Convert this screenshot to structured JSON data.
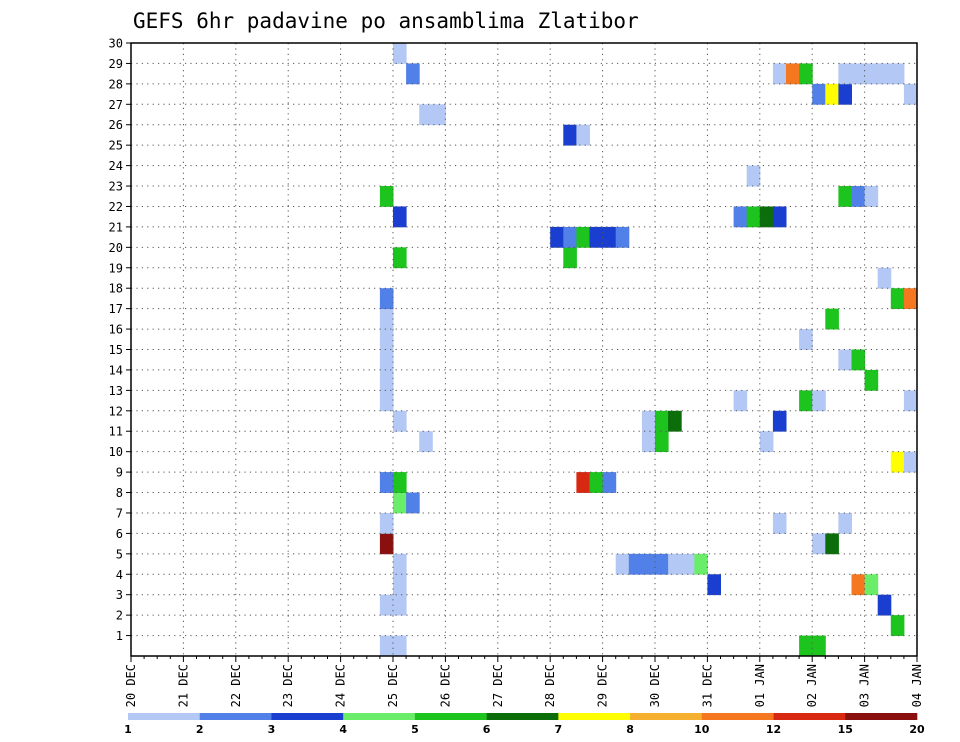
{
  "chart_data": {
    "type": "heatmap",
    "title": "GEFS 6hr padavine po ansamblima Zlatibor",
    "x_tick_labels": [
      "20 DEC",
      "21 DEC",
      "22 DEC",
      "23 DEC",
      "24 DEC",
      "25 DEC",
      "26 DEC",
      "27 DEC",
      "28 DEC",
      "29 DEC",
      "30 DEC",
      "31 DEC",
      "01 JAN",
      "02 JAN",
      "03 JAN",
      "04 JAN"
    ],
    "y_tick_labels": [
      "1",
      "2",
      "3",
      "4",
      "5",
      "6",
      "7",
      "8",
      "9",
      "10",
      "11",
      "12",
      "13",
      "14",
      "15",
      "16",
      "17",
      "18",
      "19",
      "20",
      "21",
      "22",
      "23",
      "24",
      "25",
      "26",
      "27",
      "28",
      "29",
      "30"
    ],
    "xlim": [
      0,
      15
    ],
    "ylim": [
      0,
      30
    ],
    "grid": true,
    "legend": {
      "placement": "bottom",
      "labels": [
        "1",
        "2",
        "3",
        "4",
        "5",
        "6",
        "7",
        "8",
        "10",
        "12",
        "15",
        "20"
      ],
      "colors": [
        "#b4c8f5",
        "#5080e8",
        "#1a3ed0",
        "#6aee6a",
        "#1dc41d",
        "#0b6e0b",
        "#ffff00",
        "#f5b030",
        "#f57820",
        "#d82812",
        "#8a1010"
      ]
    },
    "cells": [
      {
        "x": 4.75,
        "y": 0,
        "v": 1
      },
      {
        "x": 5.0,
        "y": 0,
        "v": 1
      },
      {
        "x": 12.75,
        "y": 0,
        "v": 5
      },
      {
        "x": 13.0,
        "y": 0,
        "v": 5
      },
      {
        "x": 14.5,
        "y": 1,
        "v": 5
      },
      {
        "x": 4.75,
        "y": 2,
        "v": 1
      },
      {
        "x": 5.0,
        "y": 2,
        "v": 1
      },
      {
        "x": 14.25,
        "y": 2,
        "v": 3
      },
      {
        "x": 5.0,
        "y": 3,
        "v": 1
      },
      {
        "x": 11.0,
        "y": 3,
        "v": 3
      },
      {
        "x": 13.75,
        "y": 3,
        "v": 10
      },
      {
        "x": 14.0,
        "y": 3,
        "v": 4
      },
      {
        "x": 5.0,
        "y": 4,
        "v": 1
      },
      {
        "x": 9.25,
        "y": 4,
        "v": 1
      },
      {
        "x": 9.5,
        "y": 4,
        "v": 2
      },
      {
        "x": 9.75,
        "y": 4,
        "v": 2
      },
      {
        "x": 10.0,
        "y": 4,
        "v": 2
      },
      {
        "x": 10.25,
        "y": 4,
        "v": 1
      },
      {
        "x": 10.5,
        "y": 4,
        "v": 1
      },
      {
        "x": 10.75,
        "y": 4,
        "v": 4
      },
      {
        "x": 4.75,
        "y": 5,
        "v": 15
      },
      {
        "x": 13.0,
        "y": 5,
        "v": 1
      },
      {
        "x": 13.25,
        "y": 5,
        "v": 6
      },
      {
        "x": 4.75,
        "y": 6,
        "v": 1
      },
      {
        "x": 12.25,
        "y": 6,
        "v": 1
      },
      {
        "x": 13.5,
        "y": 6,
        "v": 1
      },
      {
        "x": 5.0,
        "y": 7,
        "v": 4
      },
      {
        "x": 5.25,
        "y": 7,
        "v": 2
      },
      {
        "x": 4.75,
        "y": 8,
        "v": 2
      },
      {
        "x": 5.0,
        "y": 8,
        "v": 5
      },
      {
        "x": 8.5,
        "y": 8,
        "v": 12
      },
      {
        "x": 8.75,
        "y": 8,
        "v": 5
      },
      {
        "x": 9.0,
        "y": 8,
        "v": 2
      },
      {
        "x": 14.5,
        "y": 9,
        "v": 7
      },
      {
        "x": 14.75,
        "y": 9,
        "v": 1
      },
      {
        "x": 5.5,
        "y": 10,
        "v": 1
      },
      {
        "x": 9.75,
        "y": 10,
        "v": 1
      },
      {
        "x": 10.0,
        "y": 10,
        "v": 5
      },
      {
        "x": 12.0,
        "y": 10,
        "v": 1
      },
      {
        "x": 5.0,
        "y": 11,
        "v": 1
      },
      {
        "x": 9.75,
        "y": 11,
        "v": 1
      },
      {
        "x": 10.0,
        "y": 11,
        "v": 5
      },
      {
        "x": 10.25,
        "y": 11,
        "v": 6
      },
      {
        "x": 12.25,
        "y": 11,
        "v": 3
      },
      {
        "x": 4.75,
        "y": 12,
        "v": 1
      },
      {
        "x": 11.5,
        "y": 12,
        "v": 1
      },
      {
        "x": 12.75,
        "y": 12,
        "v": 5
      },
      {
        "x": 13.0,
        "y": 12,
        "v": 1
      },
      {
        "x": 14.75,
        "y": 12,
        "v": 1
      },
      {
        "x": 4.75,
        "y": 13,
        "v": 1
      },
      {
        "x": 14.0,
        "y": 13,
        "v": 5
      },
      {
        "x": 4.75,
        "y": 14,
        "v": 1
      },
      {
        "x": 13.5,
        "y": 14,
        "v": 1
      },
      {
        "x": 13.75,
        "y": 14,
        "v": 5
      },
      {
        "x": 4.75,
        "y": 15,
        "v": 1
      },
      {
        "x": 12.75,
        "y": 15,
        "v": 1
      },
      {
        "x": 13.25,
        "y": 16,
        "v": 5
      },
      {
        "x": 4.75,
        "y": 16,
        "v": 1
      },
      {
        "x": 4.75,
        "y": 17,
        "v": 2
      },
      {
        "x": 14.5,
        "y": 17,
        "v": 5
      },
      {
        "x": 14.75,
        "y": 17,
        "v": 10
      },
      {
        "x": 14.25,
        "y": 18,
        "v": 1
      },
      {
        "x": 5.0,
        "y": 19,
        "v": 5
      },
      {
        "x": 8.25,
        "y": 19,
        "v": 5
      },
      {
        "x": 8.0,
        "y": 20,
        "v": 3
      },
      {
        "x": 8.25,
        "y": 20,
        "v": 2
      },
      {
        "x": 8.5,
        "y": 20,
        "v": 5
      },
      {
        "x": 8.75,
        "y": 20,
        "v": 3
      },
      {
        "x": 9.0,
        "y": 20,
        "v": 3
      },
      {
        "x": 9.25,
        "y": 20,
        "v": 2
      },
      {
        "x": 5.0,
        "y": 21,
        "v": 3
      },
      {
        "x": 11.5,
        "y": 21,
        "v": 2
      },
      {
        "x": 11.75,
        "y": 21,
        "v": 5
      },
      {
        "x": 12.0,
        "y": 21,
        "v": 6
      },
      {
        "x": 12.25,
        "y": 21,
        "v": 3
      },
      {
        "x": 4.75,
        "y": 22,
        "v": 5
      },
      {
        "x": 13.5,
        "y": 22,
        "v": 5
      },
      {
        "x": 13.75,
        "y": 22,
        "v": 2
      },
      {
        "x": 14.0,
        "y": 22,
        "v": 1
      },
      {
        "x": 11.75,
        "y": 23,
        "v": 1
      },
      {
        "x": 8.25,
        "y": 25,
        "v": 3
      },
      {
        "x": 8.5,
        "y": 25,
        "v": 1
      },
      {
        "x": 5.5,
        "y": 26,
        "v": 1
      },
      {
        "x": 5.75,
        "y": 26,
        "v": 1
      },
      {
        "x": 13.0,
        "y": 27,
        "v": 2
      },
      {
        "x": 13.25,
        "y": 27,
        "v": 7
      },
      {
        "x": 13.5,
        "y": 27,
        "v": 3
      },
      {
        "x": 14.75,
        "y": 27,
        "v": 1
      },
      {
        "x": 5.25,
        "y": 28,
        "v": 2
      },
      {
        "x": 12.25,
        "y": 28,
        "v": 1
      },
      {
        "x": 12.5,
        "y": 28,
        "v": 10
      },
      {
        "x": 12.75,
        "y": 28,
        "v": 5
      },
      {
        "x": 13.5,
        "y": 28,
        "v": 1
      },
      {
        "x": 13.75,
        "y": 28,
        "v": 1
      },
      {
        "x": 14.0,
        "y": 28,
        "v": 1
      },
      {
        "x": 14.25,
        "y": 28,
        "v": 1
      },
      {
        "x": 14.5,
        "y": 28,
        "v": 1
      },
      {
        "x": 5.0,
        "y": 29,
        "v": 1
      }
    ]
  }
}
